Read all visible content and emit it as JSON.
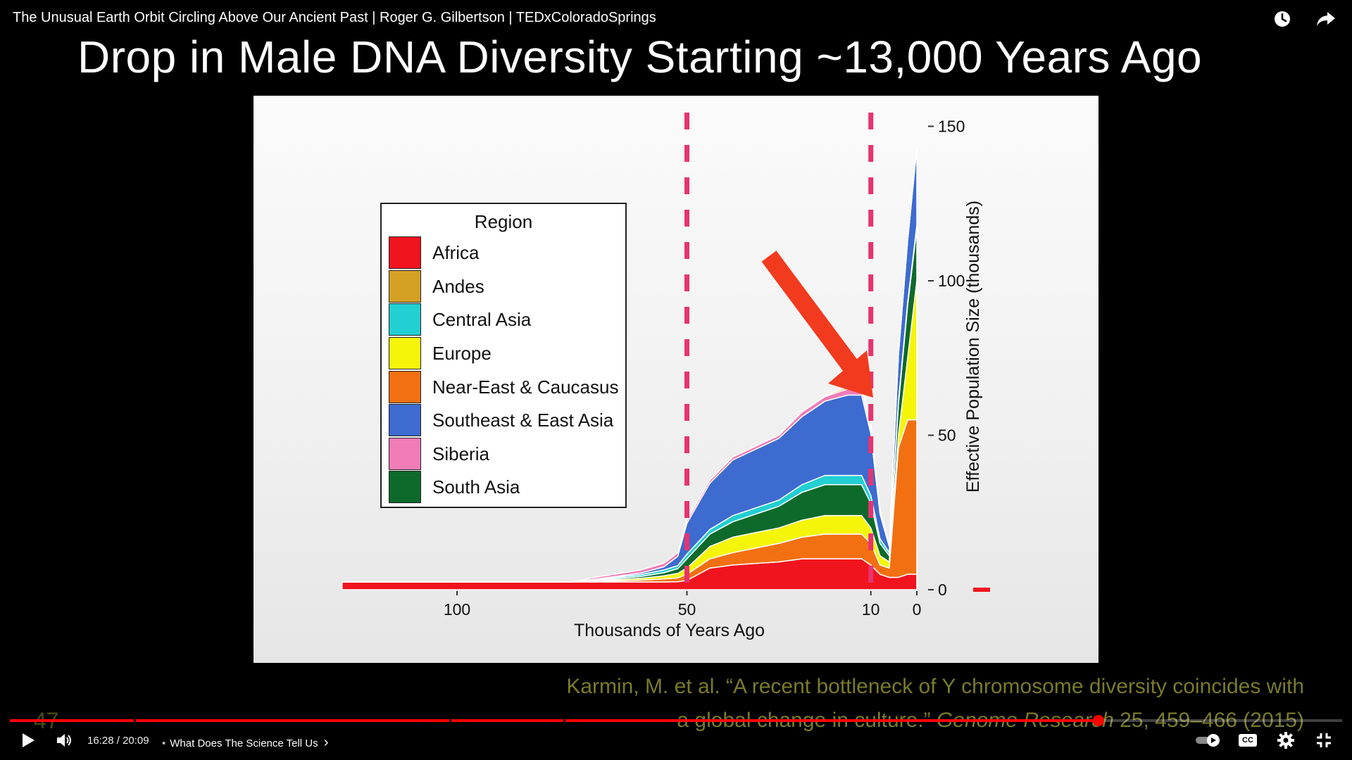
{
  "video": {
    "title": "The Unusual Earth Orbit Circling Above Our Ancient Past | Roger G. Gilbertson | TEDxColoradoSprings"
  },
  "top_actions": [
    {
      "name": "watch-later-icon",
      "icon": "clock"
    },
    {
      "name": "share-icon",
      "icon": "share-arrow"
    }
  ],
  "slide": {
    "title": "Drop in Male DNA Diversity Starting ~13,000 Years Ago",
    "citation_line1": "Karmin, M. et al. “A recent bottleneck of Y chromosome diversity coincides with",
    "citation_line2_prefix": "a global change in culture.” ",
    "citation_journal": "Genome Research",
    "citation_line2_suffix": " 25, 459–466 (2015)",
    "slide_number": "47"
  },
  "chart_data": {
    "type": "area",
    "stacked": true,
    "xlabel": "Thousands of Years Ago",
    "ylabel": "Effective Population Size (thousands)",
    "x_direction": "reversed",
    "xlim": [
      125,
      0
    ],
    "ylim": [
      0,
      150
    ],
    "x_ticks": [
      100,
      50,
      10,
      0
    ],
    "y_ticks": [
      0,
      50,
      100,
      150
    ],
    "legend_title": "Region",
    "legend_position": "inside-left",
    "reference_lines_x": [
      50,
      10
    ],
    "annotation": "red arrow pointing to peak near 10 thousand years ago",
    "x": [
      125,
      100,
      75,
      70,
      65,
      60,
      55,
      52,
      50,
      45,
      40,
      35,
      30,
      25,
      20,
      15,
      12,
      10,
      8,
      6,
      4,
      2,
      0
    ],
    "series": [
      {
        "name": "Africa",
        "color": "#f0141e",
        "values": [
          2.5,
          2.5,
          2.5,
          2.5,
          2.5,
          2.5,
          2.5,
          2.6,
          3,
          7,
          8,
          8.5,
          9,
          10,
          10,
          10,
          10,
          8,
          5,
          4,
          4,
          5,
          5
        ]
      },
      {
        "name": "Andes",
        "color": "#d5a124",
        "values": [
          0,
          0,
          0,
          0,
          0,
          0,
          0,
          0,
          0,
          0,
          0,
          0,
          0,
          0,
          0.3,
          0.6,
          1,
          2,
          0.5,
          0.2,
          0,
          0,
          0
        ]
      },
      {
        "name": "Central Asia",
        "color": "#22cfd2",
        "values": [
          0,
          0,
          0,
          0.2,
          0.4,
          0.6,
          0.9,
          1,
          1.5,
          1.5,
          2,
          2,
          2,
          2.5,
          3,
          3,
          3,
          2.5,
          1.5,
          1,
          1,
          1,
          1
        ]
      },
      {
        "name": "Europe",
        "color": "#f5f50a",
        "values": [
          0,
          0,
          0,
          0.2,
          0.4,
          0.6,
          1,
          1.5,
          2,
          4,
          5,
          5,
          5,
          5.5,
          6,
          6,
          6,
          5,
          3,
          2,
          4,
          20,
          45
        ]
      },
      {
        "name": "Near-East & Caucasus",
        "color": "#f27012",
        "values": [
          0,
          0,
          0,
          0.2,
          0.4,
          0.6,
          1,
          1.2,
          2,
          3,
          4,
          5,
          6,
          7,
          8,
          8,
          8,
          7,
          3,
          3,
          42,
          50,
          50
        ]
      },
      {
        "name": "Southeast & East Asia",
        "color": "#3d6bd0",
        "values": [
          0,
          0,
          0,
          0.1,
          0.3,
          0.5,
          1,
          3,
          10,
          15,
          18,
          19,
          20,
          22,
          24,
          26,
          26,
          20,
          8,
          2,
          15,
          20,
          25
        ]
      },
      {
        "name": "Siberia",
        "color": "#f07cb8",
        "values": [
          0,
          0,
          0,
          0.6,
          0.8,
          1,
          1.2,
          1.2,
          1,
          1,
          1,
          1,
          1,
          1.5,
          1.5,
          2,
          2,
          1.5,
          1,
          0.5,
          0,
          0,
          0
        ]
      },
      {
        "name": "South Asia",
        "color": "#0e6a2a",
        "values": [
          0,
          0,
          0,
          0.2,
          0.4,
          0.6,
          1,
          1.5,
          3,
          4,
          5,
          6,
          7,
          9,
          10,
          10,
          10,
          8,
          4,
          2,
          10,
          17,
          17
        ]
      }
    ],
    "stack_order": [
      "Africa",
      "Near-East & Caucasus",
      "Europe",
      "South Asia",
      "Central Asia",
      "Southeast & East Asia",
      "Siberia",
      "Andes"
    ]
  },
  "player": {
    "current_time": "16:28",
    "duration": "20:09",
    "time_separator": " / ",
    "chapter_title": "What Does The Science Tell Us",
    "chapter_chevron": "›",
    "progress_fraction": 0.817,
    "autoplay_on": true,
    "controls_left": [
      {
        "name": "play-icon",
        "icon": "play"
      },
      {
        "name": "volume-icon",
        "icon": "volume"
      }
    ],
    "controls_right": [
      {
        "name": "autoplay-toggle",
        "icon": "toggle"
      },
      {
        "name": "captions-icon",
        "icon": "cc"
      },
      {
        "name": "settings-icon",
        "icon": "gear"
      },
      {
        "name": "exit-fullscreen-icon",
        "icon": "exit-fullscreen"
      }
    ],
    "cc_label": "CC",
    "accent_color": "#ff0000"
  }
}
